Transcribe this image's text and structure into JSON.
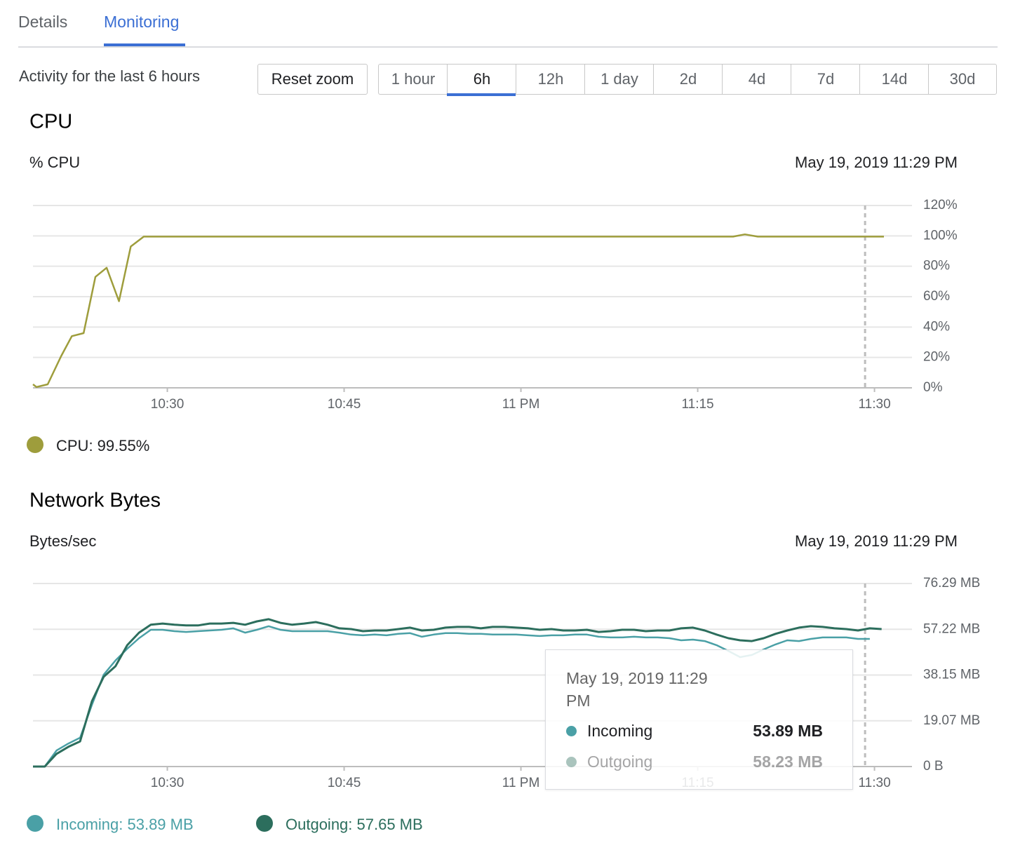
{
  "tabs": [
    "Details",
    "Monitoring"
  ],
  "active_tab": 1,
  "activity_label": "Activity for the last 6 hours",
  "reset_button": "Reset zoom",
  "ranges": [
    "1 hour",
    "6h",
    "12h",
    "1 day",
    "2d",
    "4d",
    "7d",
    "14d",
    "30d"
  ],
  "active_range": 1,
  "chart_data": [
    {
      "type": "line",
      "title": "CPU",
      "y_label": "% CPU",
      "timestamp": "May 19, 2019 11:29 PM",
      "x": [
        18.6,
        18.9,
        19.85,
        21.0,
        21.9,
        22.9,
        23.9,
        24.85,
        25.9,
        26.9,
        28.0,
        30,
        35,
        40,
        45,
        50,
        55,
        60,
        65,
        70,
        75,
        78.0,
        79.0,
        80.1,
        85,
        90.8
      ],
      "xlim": [
        18.6,
        93.18
      ],
      "xticks": [
        {
          "value": 30,
          "label": "10:30"
        },
        {
          "value": 45,
          "label": "10:45"
        },
        {
          "value": 60,
          "label": "11 PM"
        },
        {
          "value": 75,
          "label": "11:15"
        },
        {
          "value": 90,
          "label": "11:30"
        }
      ],
      "ylim": [
        0,
        120
      ],
      "yticks": [
        {
          "value": 0,
          "label": "0%"
        },
        {
          "value": 20,
          "label": "20%"
        },
        {
          "value": 40,
          "label": "40%"
        },
        {
          "value": 60,
          "label": "60%"
        },
        {
          "value": 80,
          "label": "80%"
        },
        {
          "value": 100,
          "label": "100%"
        },
        {
          "value": 120,
          "label": "120%"
        }
      ],
      "grid": true,
      "cursor_x": 89.2,
      "series": [
        {
          "name": "CPU",
          "color": "#9e9d3c",
          "legend_label": "CPU: 99.55%",
          "values": [
            2.3,
            0.5,
            2.3,
            21,
            34,
            36,
            73,
            79,
            57,
            93,
            99.5,
            99.5,
            99.5,
            99.5,
            99.5,
            99.5,
            99.5,
            99.5,
            99.5,
            99.5,
            99.5,
            99.5,
            101,
            99.5,
            99.5,
            99.5
          ]
        }
      ]
    },
    {
      "type": "line",
      "title": "Network Bytes",
      "y_label": "Bytes/sec",
      "timestamp": "May 19, 2019 11:29 PM",
      "x": [
        18.6,
        19.6,
        20.6,
        21.6,
        22.6,
        23.6,
        24.6,
        25.6,
        26.6,
        27.6,
        28.6,
        29.6,
        30.6,
        31.6,
        32.6,
        33.6,
        34.6,
        35.6,
        36.6,
        37.6,
        38.6,
        39.6,
        40.6,
        41.6,
        42.6,
        43.6,
        44.6,
        45.6,
        46.6,
        47.6,
        48.6,
        49.6,
        50.6,
        51.6,
        52.6,
        53.6,
        54.6,
        55.6,
        56.6,
        57.6,
        58.6,
        59.6,
        60.6,
        61.6,
        62.6,
        63.6,
        64.6,
        65.6,
        66.6,
        67.6,
        68.6,
        69.6,
        70.6,
        71.6,
        72.6,
        73.6,
        74.6,
        75.6,
        76.6,
        77.6,
        78.6,
        79.6,
        80.6,
        81.6,
        82.6,
        83.6,
        84.6,
        85.6,
        86.6,
        87.6,
        88.6,
        89.6,
        90.6
      ],
      "xlim": [
        18.6,
        93.18
      ],
      "xticks": [
        {
          "value": 30,
          "label": "10:30"
        },
        {
          "value": 45,
          "label": "10:45"
        },
        {
          "value": 60,
          "label": "11 PM"
        },
        {
          "value": 75,
          "label": "11:15"
        },
        {
          "value": 90,
          "label": "11:30"
        }
      ],
      "ylim": [
        0,
        76.29
      ],
      "yticks": [
        {
          "value": 0,
          "label": "0 B"
        },
        {
          "value": 19.07,
          "label": "19.07 MB"
        },
        {
          "value": 38.15,
          "label": "38.15 MB"
        },
        {
          "value": 57.22,
          "label": "57.22 MB"
        },
        {
          "value": 76.29,
          "label": "76.29 MB"
        }
      ],
      "grid": true,
      "cursor_x": 89.2,
      "series": [
        {
          "name": "Incoming",
          "color": "#4aa0a6",
          "legend_label": "Incoming: 53.89 MB",
          "values": [
            0,
            0,
            6.7,
            9.6,
            12.0,
            25.7,
            38.3,
            44.2,
            49.1,
            53.5,
            57.0,
            57.0,
            56.4,
            56.1,
            56.4,
            56.7,
            57.0,
            57.6,
            55.8,
            57.0,
            58.5,
            57.0,
            56.4,
            56.4,
            56.4,
            56.4,
            55.8,
            55.0,
            54.7,
            55.0,
            54.7,
            55.3,
            55.6,
            54.1,
            55.0,
            55.6,
            55.6,
            55.3,
            55.3,
            55.0,
            55.0,
            55.0,
            54.7,
            54.4,
            54.7,
            54.7,
            55.0,
            55.0,
            54.1,
            53.8,
            53.8,
            54.1,
            53.8,
            53.8,
            53.5,
            52.6,
            52.9,
            52.3,
            50.6,
            48.2,
            45.6,
            46.5,
            48.8,
            50.9,
            52.6,
            52.3,
            53.2,
            53.8,
            53.8,
            53.8,
            53.2,
            53.2,
            null
          ]
        },
        {
          "name": "Outgoing",
          "color": "#2c6e5d",
          "legend_label": "Outgoing: 57.65 MB",
          "values": [
            0,
            0,
            5.3,
            8.2,
            10.5,
            27.2,
            37.4,
            41.8,
            50.6,
            55.8,
            59.1,
            59.6,
            59.1,
            58.8,
            58.8,
            59.6,
            59.6,
            59.9,
            59.1,
            60.5,
            61.4,
            59.9,
            59.1,
            59.6,
            60.2,
            59.1,
            57.6,
            57.3,
            56.4,
            56.7,
            56.7,
            57.3,
            57.9,
            56.7,
            57.0,
            57.9,
            58.2,
            58.2,
            57.6,
            58.2,
            58.2,
            57.9,
            57.6,
            57.0,
            57.3,
            56.7,
            56.7,
            57.0,
            56.1,
            56.4,
            57.0,
            57.0,
            56.4,
            56.7,
            56.7,
            57.6,
            57.9,
            56.7,
            55.0,
            53.5,
            52.6,
            52.3,
            53.5,
            55.3,
            56.7,
            57.9,
            58.5,
            58.2,
            57.6,
            57.3,
            56.7,
            57.6,
            57.3
          ]
        }
      ],
      "tooltip": {
        "title": "May 19, 2019 11:29 PM",
        "values": [
          "53.89 MB",
          "58.23 MB"
        ]
      }
    }
  ]
}
